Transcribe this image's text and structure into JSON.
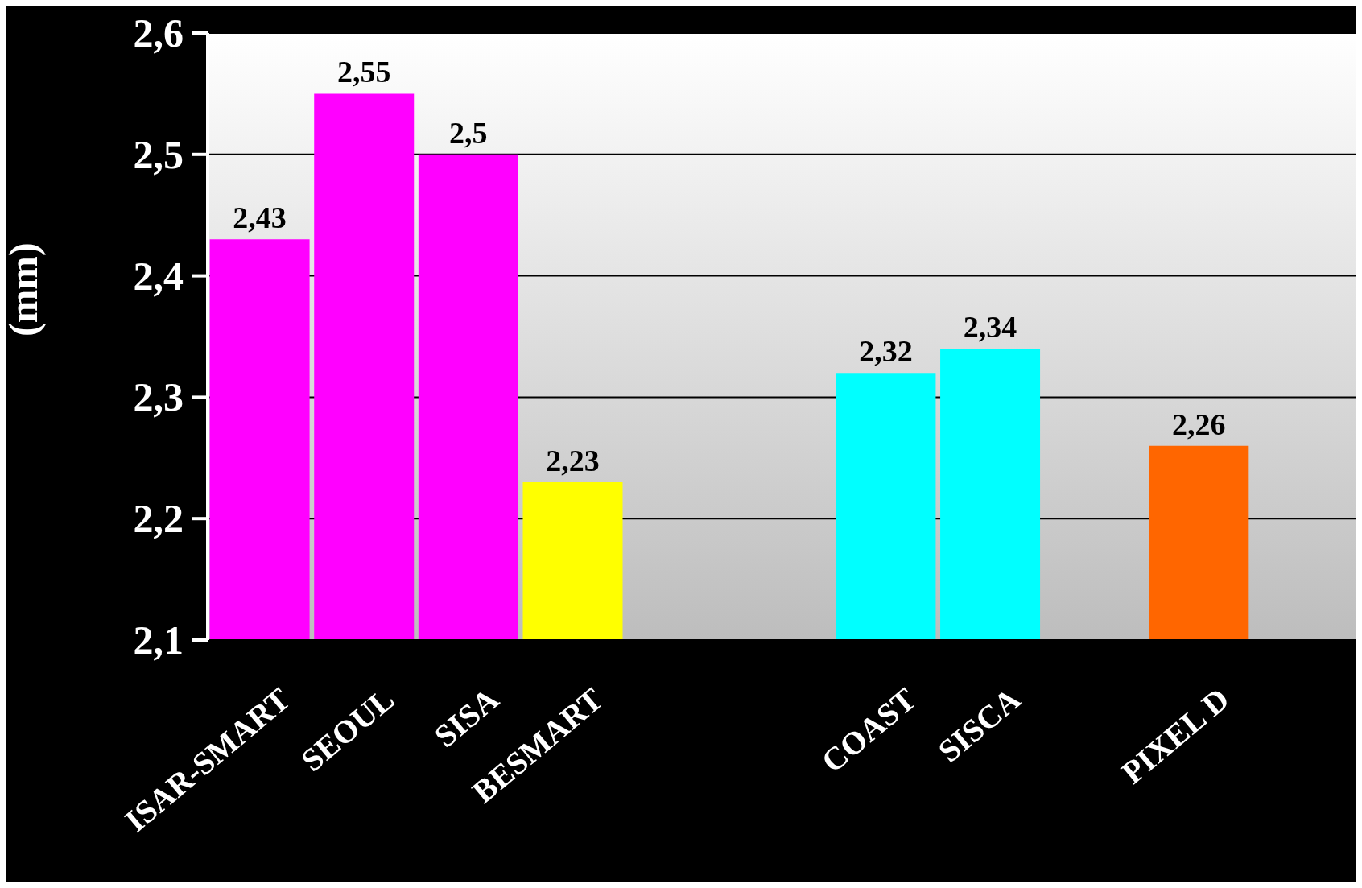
{
  "chart_data": {
    "type": "bar",
    "ylabel": "(mm)",
    "categories": [
      "ISAR-SMART",
      "SEOUL",
      "SISA",
      "BESMART",
      null,
      null,
      "COAST",
      "SISCA",
      null,
      "PIXEL D",
      null
    ],
    "values": [
      2.43,
      2.55,
      2.5,
      2.23,
      null,
      null,
      2.32,
      2.34,
      null,
      2.26,
      null
    ],
    "value_labels": [
      "2,43",
      "2,55",
      "2,5",
      "2,23",
      null,
      null,
      "2,32",
      "2,34",
      null,
      "2,26",
      null
    ],
    "colors": [
      "#ff00ff",
      "#ff00ff",
      "#ff00ff",
      "#ffff00",
      null,
      null,
      "#00ffff",
      "#00ffff",
      null,
      "#ff6600",
      null
    ],
    "ylim": [
      2.1,
      2.6
    ],
    "yticks": [
      {
        "value": 2.1,
        "label": "2,1"
      },
      {
        "value": 2.2,
        "label": "2,2"
      },
      {
        "value": 2.3,
        "label": "2,3"
      },
      {
        "value": 2.4,
        "label": "2,4"
      },
      {
        "value": 2.5,
        "label": "2,5"
      },
      {
        "value": 2.6,
        "label": "2,6"
      }
    ],
    "grid": "y"
  }
}
